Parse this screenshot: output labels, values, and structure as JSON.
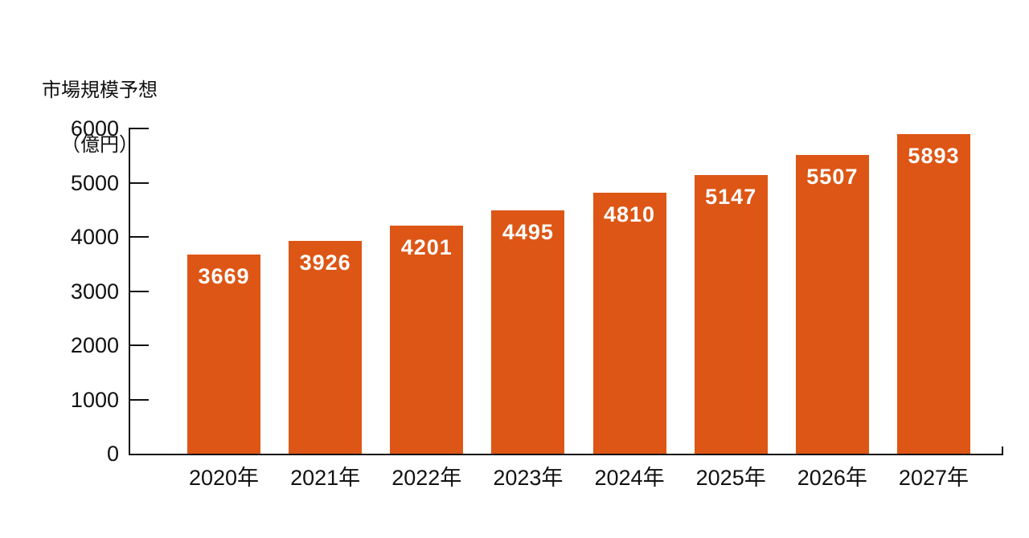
{
  "chart_data": {
    "type": "bar",
    "title": "市場規模予想",
    "title_unit": "（億円）",
    "categories": [
      "2020年",
      "2021年",
      "2022年",
      "2023年",
      "2024年",
      "2025年",
      "2026年",
      "2027年"
    ],
    "values": [
      3669,
      3926,
      4201,
      4495,
      4810,
      5147,
      5507,
      5893
    ],
    "y_ticks": [
      0,
      1000,
      2000,
      3000,
      4000,
      5000,
      6000
    ],
    "ylim": [
      0,
      6000
    ],
    "grid": false,
    "legend": false,
    "bar_color": "#DD5615",
    "bar_label_color": "#FFFFFF",
    "axis_color": "#111111",
    "text_color": "#111111",
    "background_color": "#FFFFFF"
  }
}
